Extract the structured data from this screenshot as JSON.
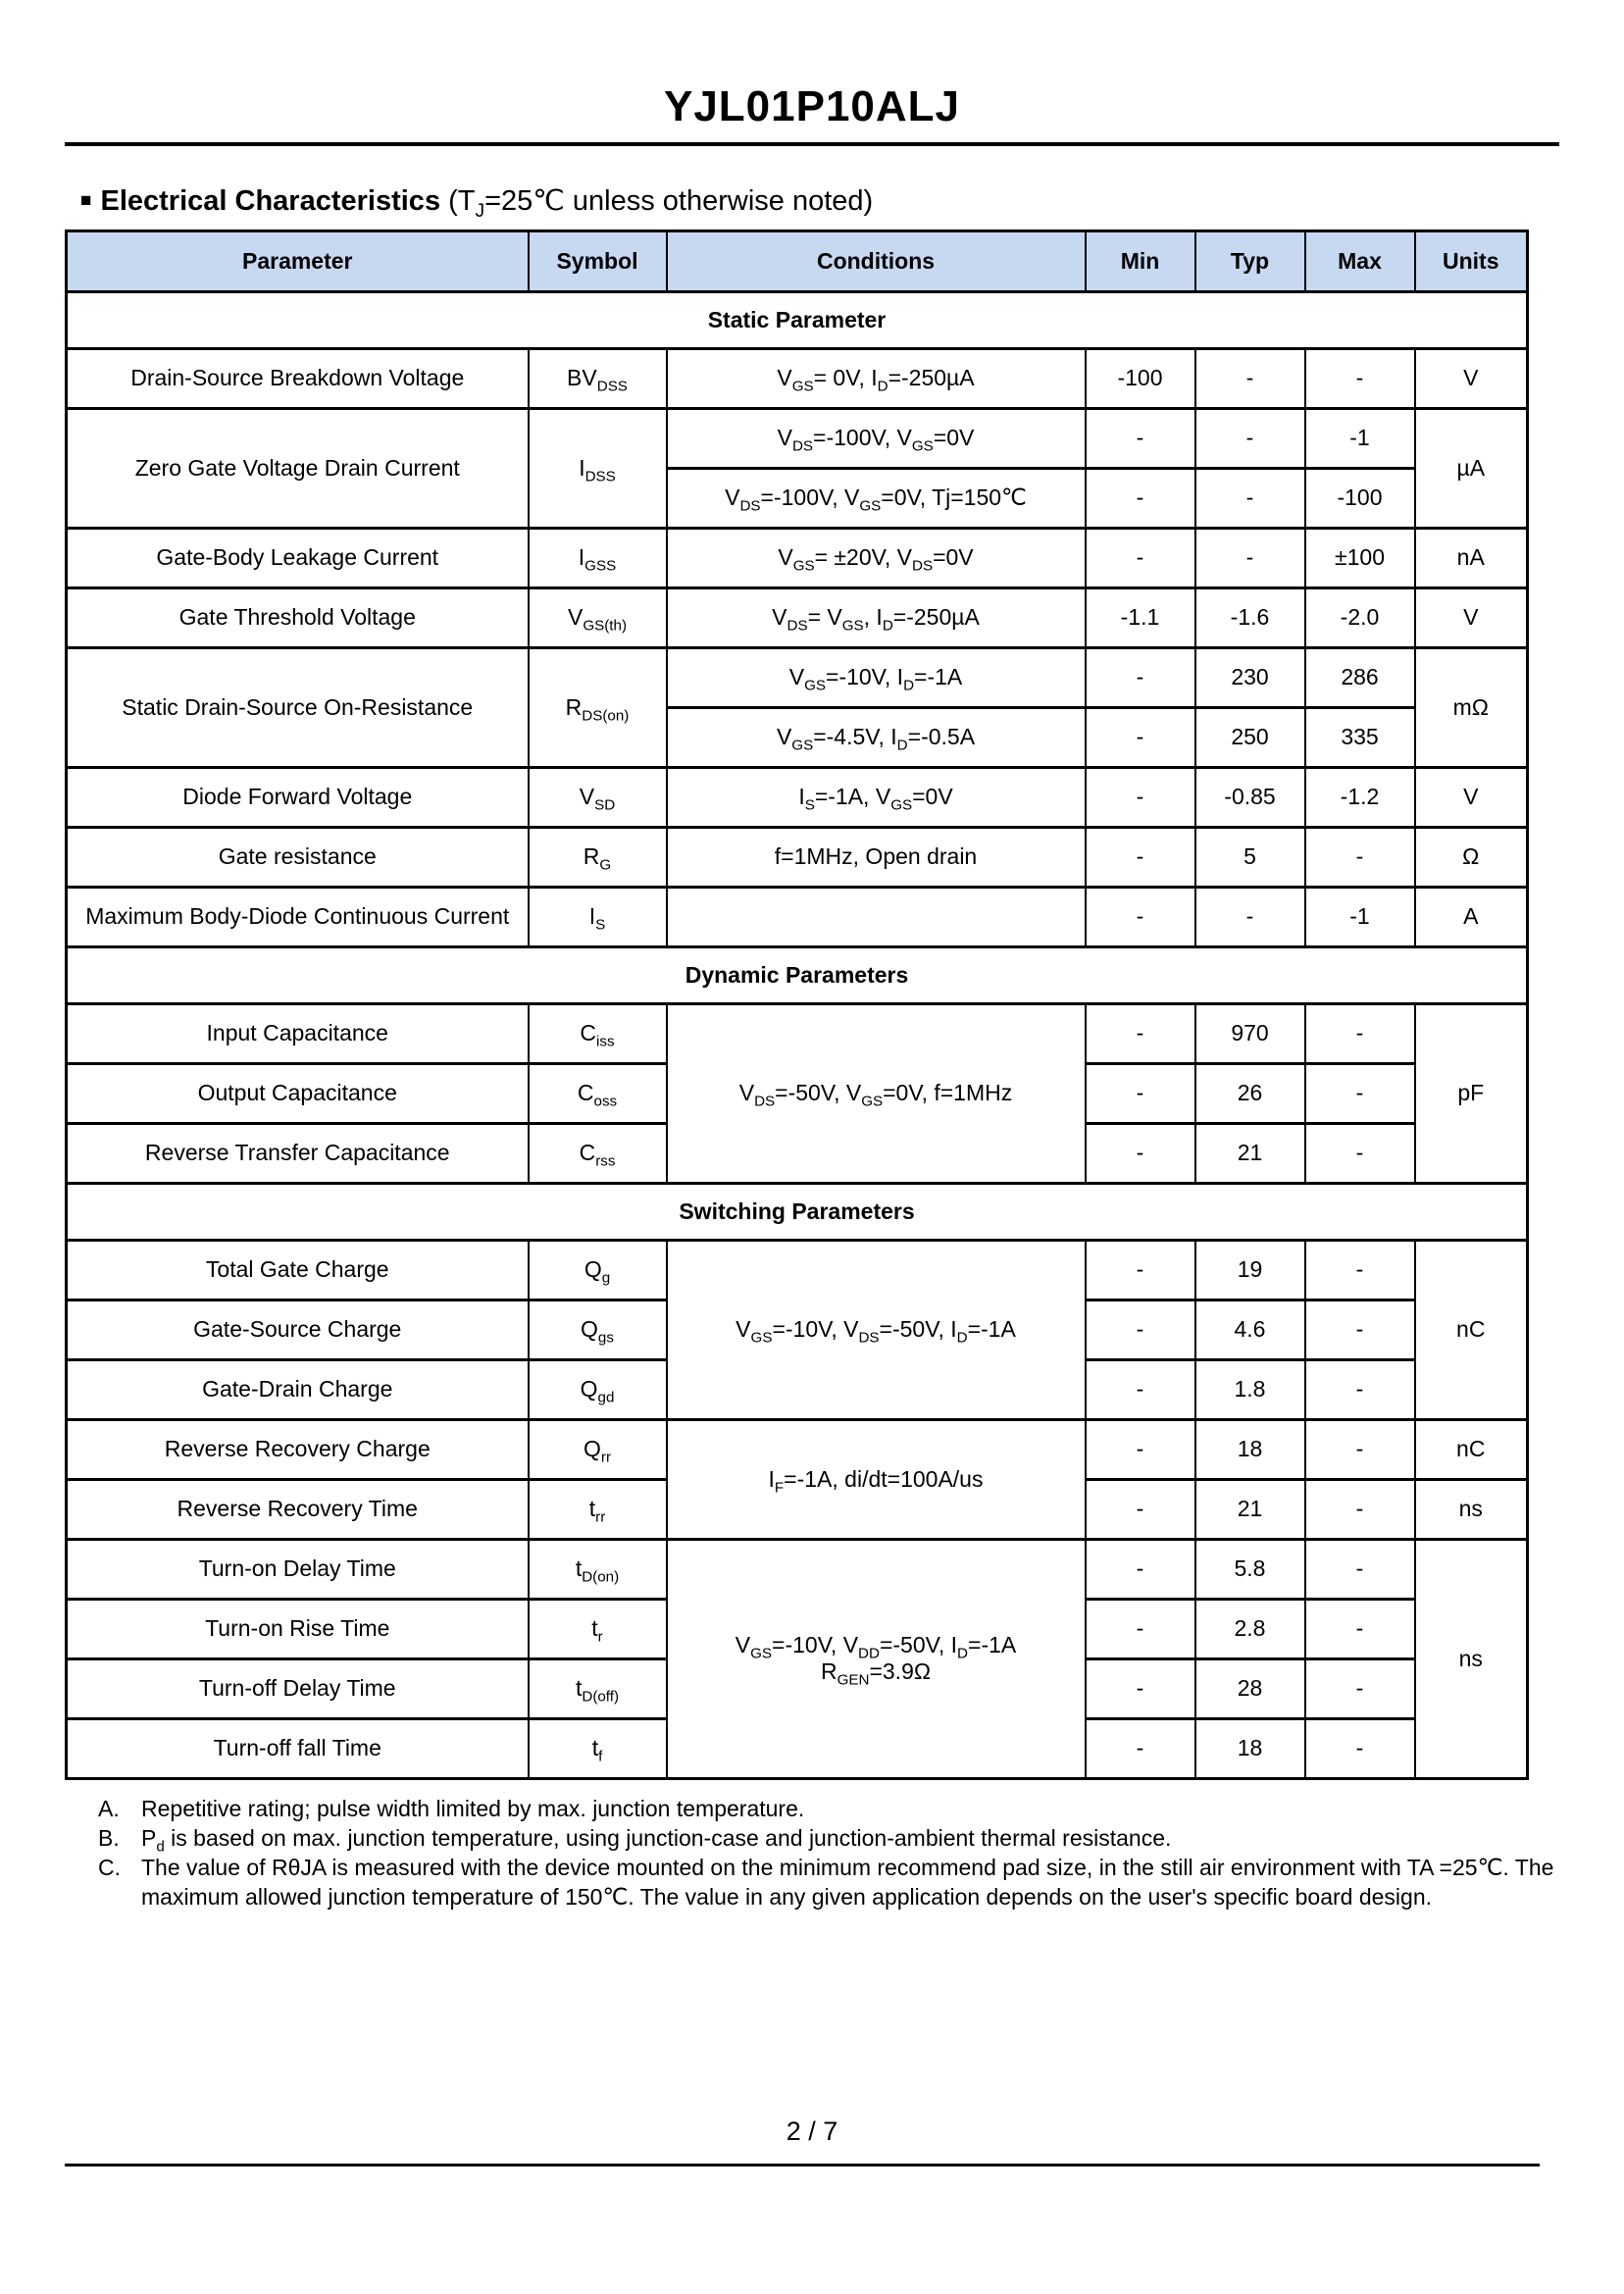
{
  "header": {
    "part_number": "YJL01P10ALJ"
  },
  "section": {
    "bullet": "■",
    "title": "Electrical Characteristics",
    "note": "(T~J~=25℃ unless otherwise noted)"
  },
  "table": {
    "header_bg": "#c6d9f1",
    "border_color": "#000000",
    "columns": [
      {
        "key": "parameter",
        "label": "Parameter"
      },
      {
        "key": "symbol",
        "label": "Symbol"
      },
      {
        "key": "conditions",
        "label": "Conditions"
      },
      {
        "key": "min",
        "label": "Min"
      },
      {
        "key": "typ",
        "label": "Typ"
      },
      {
        "key": "max",
        "label": "Max"
      },
      {
        "key": "units",
        "label": "Units"
      }
    ],
    "rows": [
      {
        "kind": "section",
        "label": "Static Parameter"
      },
      {
        "kind": "single",
        "param": "Drain-Source Breakdown Voltage",
        "symbol": "BV~DSS~",
        "cond": "V~GS~= 0V, I~D~=-250µA",
        "min": "-100",
        "typ": "-",
        "max": "-",
        "units": "V"
      },
      {
        "kind": "param_shared",
        "param": "Zero Gate Voltage Drain Current",
        "symbol": "I~DSS~",
        "units": "µA",
        "subrows": [
          {
            "cond": "V~DS~=-100V, V~GS~=0V",
            "min": "-",
            "typ": "-",
            "max": "-1"
          },
          {
            "cond": "V~DS~=-100V, V~GS~=0V, Tj=150℃",
            "min": "-",
            "typ": "-",
            "max": "-100"
          }
        ]
      },
      {
        "kind": "single",
        "param": "Gate-Body Leakage Current",
        "symbol": "I~GSS~",
        "cond": "V~GS~= ±20V, V~DS~=0V",
        "min": "-",
        "typ": "-",
        "max": "±100",
        "units": "nA"
      },
      {
        "kind": "single",
        "param": "Gate Threshold Voltage",
        "symbol": "V~GS(th)~",
        "cond": "V~DS~= V~GS~, I~D~=-250µA",
        "min": "-1.1",
        "typ": "-1.6",
        "max": "-2.0",
        "units": "V"
      },
      {
        "kind": "param_shared",
        "param": "Static Drain-Source On-Resistance",
        "symbol": "R~DS(on)~",
        "units": "mΩ",
        "subrows": [
          {
            "cond": "V~GS~=-10V, I~D~=-1A",
            "min": "-",
            "typ": "230",
            "max": "286"
          },
          {
            "cond": "V~GS~=-4.5V, I~D~=-0.5A",
            "min": "-",
            "typ": "250",
            "max": "335"
          }
        ]
      },
      {
        "kind": "single",
        "param": "Diode Forward Voltage",
        "symbol": "V~SD~",
        "cond": "I~S~=-1A, V~GS~=0V",
        "min": "-",
        "typ": "-0.85",
        "max": "-1.2",
        "units": "V"
      },
      {
        "kind": "single",
        "param": "Gate resistance",
        "symbol": "R~G~",
        "cond": "f=1MHz, Open drain",
        "min": "-",
        "typ": "5",
        "max": "-",
        "units": "Ω"
      },
      {
        "kind": "single",
        "param": "Maximum Body-Diode Continuous Current",
        "symbol": "I~S~",
        "cond": "",
        "min": "-",
        "typ": "-",
        "max": "-1",
        "units": "A"
      },
      {
        "kind": "section",
        "label": "Dynamic Parameters"
      },
      {
        "kind": "cond_shared",
        "cond": "V~DS~=-50V, V~GS~=0V, f=1MHz",
        "units": "pF",
        "subrows": [
          {
            "param": "Input Capacitance",
            "symbol": "C~iss~",
            "min": "-",
            "typ": "970",
            "max": "-"
          },
          {
            "param": "Output Capacitance",
            "symbol": "C~oss~",
            "min": "-",
            "typ": "26",
            "max": "-"
          },
          {
            "param": "Reverse Transfer Capacitance",
            "symbol": "C~rss~",
            "min": "-",
            "typ": "21",
            "max": "-"
          }
        ]
      },
      {
        "kind": "section",
        "label": "Switching Parameters"
      },
      {
        "kind": "cond_shared",
        "cond": "V~GS~=-10V, V~DS~=-50V, I~D~=-1A",
        "units": "nC",
        "subrows": [
          {
            "param": "Total Gate Charge",
            "symbol": "Q~g~",
            "min": "-",
            "typ": "19",
            "max": "-"
          },
          {
            "param": "Gate-Source Charge",
            "symbol": "Q~gs~",
            "min": "-",
            "typ": "4.6",
            "max": "-"
          },
          {
            "param": "Gate-Drain Charge",
            "symbol": "Q~gd~",
            "min": "-",
            "typ": "1.8",
            "max": "-"
          }
        ]
      },
      {
        "kind": "cond_shared",
        "cond": "I~F~=-1A, di/dt=100A/us",
        "subrows": [
          {
            "param": "Reverse Recovery Charge",
            "symbol": "Q~rr~",
            "min": "-",
            "typ": "18",
            "max": "-",
            "units": "nC"
          },
          {
            "param": "Reverse Recovery Time",
            "symbol": "t~rr~",
            "min": "-",
            "typ": "21",
            "max": "-",
            "units": "ns"
          }
        ]
      },
      {
        "kind": "cond_shared",
        "cond": [
          "V~GS~=-10V, V~DD~=-50V, I~D~=-1A",
          "R~GEN~=3.9Ω"
        ],
        "units": "ns",
        "subrows": [
          {
            "param": "Turn-on Delay Time",
            "symbol": "t~D(on)~",
            "min": "-",
            "typ": "5.8",
            "max": "-"
          },
          {
            "param": "Turn-on Rise Time",
            "symbol": "t~r~",
            "min": "-",
            "typ": "2.8",
            "max": "-"
          },
          {
            "param": "Turn-off Delay Time",
            "symbol": "t~D(off)~",
            "min": "-",
            "typ": "28",
            "max": "-"
          },
          {
            "param": "Turn-off fall Time",
            "symbol": "t~f~",
            "min": "-",
            "typ": "18",
            "max": "-"
          }
        ]
      }
    ]
  },
  "notes": [
    {
      "marker": "A.",
      "text": "Repetitive rating; pulse width limited by max. junction temperature."
    },
    {
      "marker": "B.",
      "text": "P~d~ is based on max. junction temperature, using junction-case and junction-ambient thermal resistance."
    },
    {
      "marker": "C.",
      "text": "The value of RθJA is measured with the device mounted on the minimum recommend pad size, in the still air environment with TA =25℃. The maximum allowed junction temperature of 150℃. The value in any given application depends on the user's specific board design."
    }
  ],
  "footer": {
    "page_indicator": "2 / 7"
  }
}
